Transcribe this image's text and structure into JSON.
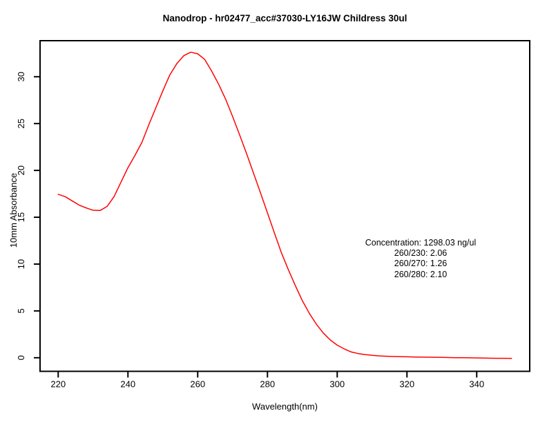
{
  "chart_data": {
    "type": "line",
    "title": "Nanodrop - hr02477_acc#37030-LY16JW Childress 30ul",
    "xlabel": "Wavelength(nm)",
    "ylabel": "10mm Absorbance",
    "xlim": [
      214.8,
      355.2
    ],
    "ylim": [
      -1.45,
      33.85
    ],
    "xticks": [
      220,
      240,
      260,
      280,
      300,
      320,
      340
    ],
    "yticks": [
      0,
      5,
      10,
      15,
      20,
      25,
      30
    ],
    "grid": false,
    "legend": false,
    "background_color": "#ffffff",
    "axis_color": "#000000",
    "series": [
      {
        "name": "uv-vis-absorbance-spectrum",
        "color": "#FF0000",
        "x": [
          220,
          222,
          224,
          226,
          228,
          230,
          232,
          234,
          236,
          238,
          240,
          242,
          244,
          246,
          248,
          250,
          252,
          254,
          256,
          258,
          260,
          262,
          264,
          266,
          268,
          270,
          272,
          274,
          276,
          278,
          280,
          282,
          284,
          286,
          288,
          290,
          292,
          294,
          296,
          298,
          300,
          302,
          304,
          306,
          308,
          310,
          312,
          314,
          316,
          318,
          320,
          322,
          324,
          326,
          328,
          330,
          332,
          334,
          336,
          338,
          340,
          342,
          344,
          346,
          348,
          350
        ],
        "y": [
          17.45,
          17.2,
          16.75,
          16.3,
          16.0,
          15.75,
          15.72,
          16.15,
          17.2,
          18.75,
          20.3,
          21.6,
          23.0,
          24.9,
          26.7,
          28.5,
          30.2,
          31.4,
          32.25,
          32.62,
          32.45,
          31.85,
          30.6,
          29.2,
          27.6,
          25.75,
          23.8,
          21.8,
          19.7,
          17.6,
          15.45,
          13.3,
          11.2,
          9.4,
          7.7,
          6.1,
          4.75,
          3.6,
          2.65,
          1.9,
          1.35,
          0.95,
          0.62,
          0.45,
          0.34,
          0.26,
          0.2,
          0.16,
          0.13,
          0.11,
          0.1,
          0.08,
          0.07,
          0.06,
          0.05,
          0.04,
          0.02,
          0.01,
          0.0,
          -0.01,
          -0.02,
          -0.04,
          -0.05,
          -0.06,
          -0.06,
          -0.07
        ]
      }
    ],
    "annotations": {
      "anchor_x_nm": 324,
      "anchor_y_absorbance": 12.3,
      "lines": [
        "Concentration: 1298.03 ng/ul",
        "260/230: 2.06",
        "260/270: 1.26",
        "260/280: 2.10"
      ]
    }
  }
}
